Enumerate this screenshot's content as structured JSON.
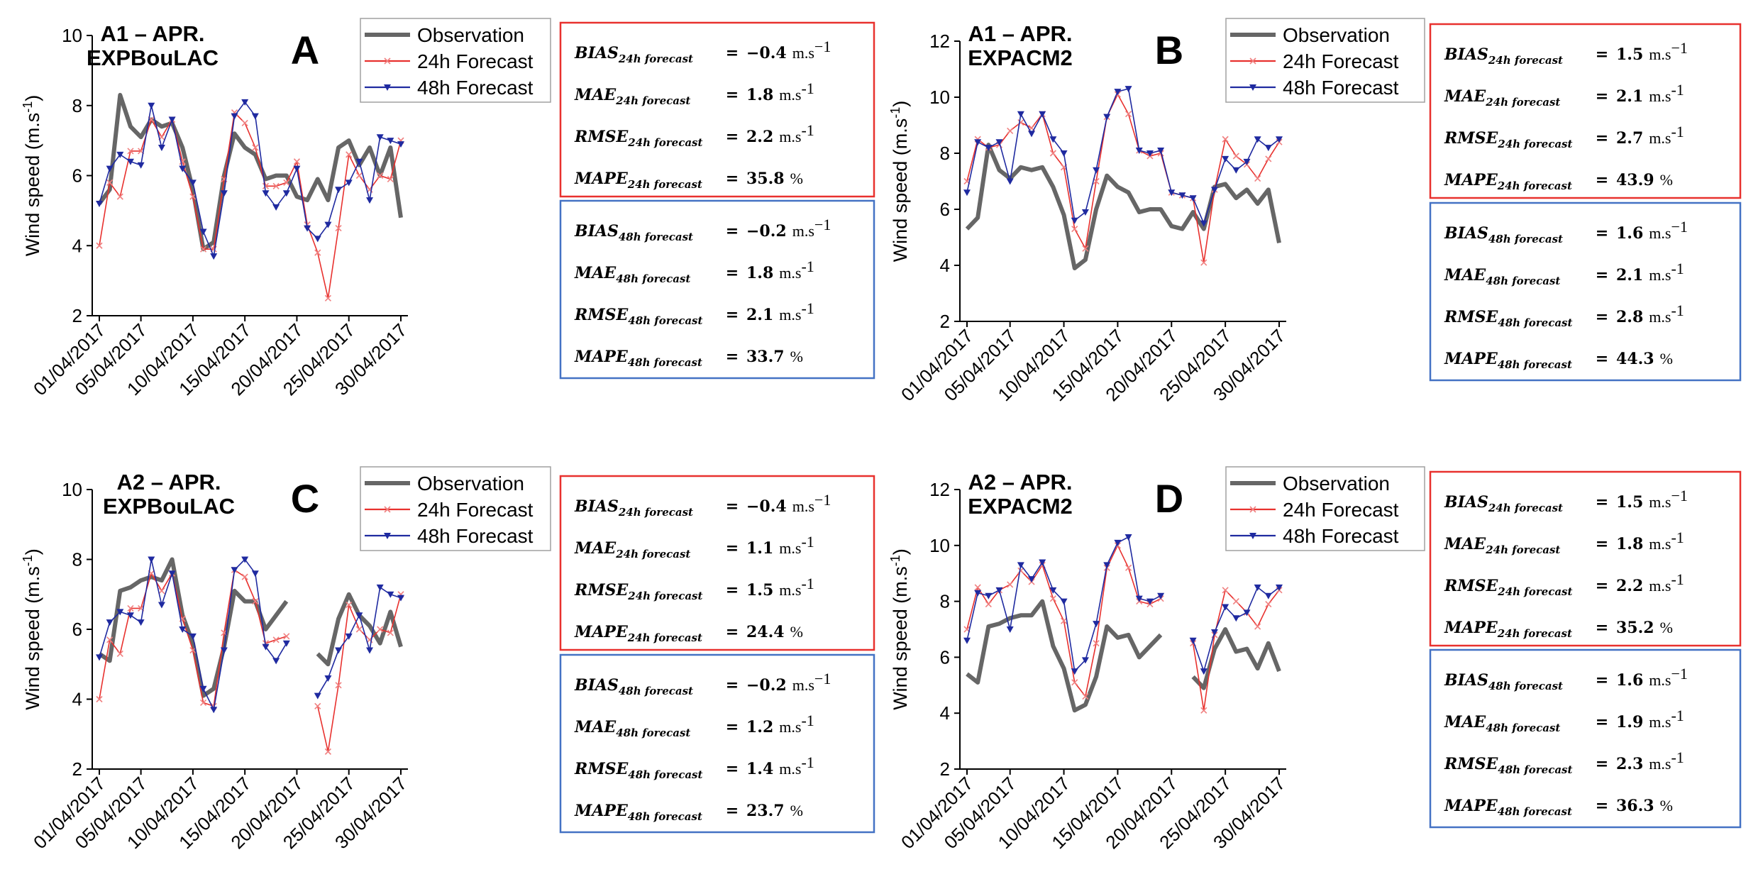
{
  "chart_data": [
    {
      "type": "line",
      "panel": "A",
      "title": "A1 – APR.",
      "subtitle": "EXPBouLAC",
      "ylabel": "Wind speed (m.s-1)",
      "ylabel_main": "Wind speed (m.s",
      "ylabel_sup": "-1",
      "ylabel_end": ")",
      "ylim": [
        2,
        10
      ],
      "yticks": [
        2,
        4,
        6,
        8,
        10
      ],
      "xticks": [
        "01/04/2017",
        "05/04/2017",
        "10/04/2017",
        "15/04/2017",
        "20/04/2017",
        "25/04/2017",
        "30/04/2017"
      ],
      "xtick_days": [
        1,
        5,
        10,
        15,
        20,
        25,
        30
      ],
      "legend": "top-right",
      "series": [
        {
          "name": "Observation",
          "color": "#666666",
          "values": [
            5.2,
            5.6,
            8.3,
            7.4,
            7.1,
            7.6,
            7.4,
            7.5,
            6.8,
            5.6,
            3.9,
            4.1,
            6.0,
            7.2,
            6.8,
            6.6,
            5.9,
            6.0,
            6.0,
            5.4,
            5.3,
            5.9,
            5.3,
            6.8,
            7.0,
            6.3,
            6.8,
            6.0,
            6.8,
            4.8
          ]
        },
        {
          "name": "24h Forecast",
          "color": "#e8312e",
          "values": [
            4.0,
            5.8,
            5.4,
            6.7,
            6.7,
            7.6,
            7.1,
            7.6,
            6.4,
            5.4,
            3.9,
            3.9,
            5.9,
            7.8,
            7.5,
            6.8,
            5.7,
            5.7,
            5.8,
            6.4,
            4.6,
            3.8,
            2.5,
            4.5,
            6.6,
            6.0,
            5.6,
            6.0,
            5.9,
            7.0
          ]
        },
        {
          "name": "48h Forecast",
          "color": "#1f2aa0",
          "values": [
            5.2,
            6.2,
            6.6,
            6.4,
            6.3,
            8.0,
            6.8,
            7.6,
            6.2,
            5.8,
            4.4,
            3.7,
            5.5,
            7.7,
            8.1,
            7.7,
            5.5,
            5.1,
            5.5,
            6.2,
            4.5,
            4.2,
            4.6,
            5.6,
            5.8,
            6.4,
            5.3,
            7.1,
            7.0,
            6.9
          ]
        }
      ],
      "stats": {
        "b24": {
          "name": "BIAS",
          "sub": "24h forecast",
          "value": "−0.4",
          "unit": "m.s",
          "sup": "−1"
        },
        "m24": {
          "name": "MAE",
          "sub": "24h forecast",
          "value": "1.8",
          "unit": "m.s",
          "sup": "-1"
        },
        "r24": {
          "name": "RMSE",
          "sub": "24h forecast",
          "value": "2.2",
          "unit": "m.s",
          "sup": "-1"
        },
        "p24": {
          "name": "MAPE",
          "sub": "24h forecast",
          "value": "35.8",
          "unit": "%",
          "sup": ""
        },
        "b48": {
          "name": "BIAS",
          "sub": "48h forecast",
          "value": "−0.2",
          "unit": "m.s",
          "sup": "−1"
        },
        "m48": {
          "name": "MAE",
          "sub": "48h forecast",
          "value": "1.8",
          "unit": "m.s",
          "sup": "-1"
        },
        "r48": {
          "name": "RMSE",
          "sub": "48h forecast",
          "value": "2.1",
          "unit": "m.s",
          "sup": "-1"
        },
        "p48": {
          "name": "MAPE",
          "sub": "48h forecast",
          "value": "33.7",
          "unit": "%",
          "sup": ""
        }
      }
    },
    {
      "type": "line",
      "panel": "B",
      "title": "A1 – APR.",
      "subtitle": "EXPACM2",
      "ylabel": "Wind speed (m.s-1)",
      "ylabel_main": "Wind speed (m.s",
      "ylabel_sup": "-1",
      "ylabel_end": ")",
      "ylim": [
        2,
        12
      ],
      "yticks": [
        2,
        4,
        6,
        8,
        10,
        12
      ],
      "xticks": [
        "01/04/2017",
        "05/04/2017",
        "10/04/2017",
        "15/04/2017",
        "20/04/2017",
        "25/04/2017",
        "30/04/2017"
      ],
      "xtick_days": [
        1,
        5,
        10,
        15,
        20,
        25,
        30
      ],
      "legend": "top-right",
      "series": [
        {
          "name": "Observation",
          "color": "#666666",
          "values": [
            5.3,
            5.7,
            8.3,
            7.4,
            7.1,
            7.5,
            7.4,
            7.5,
            6.8,
            5.8,
            3.9,
            4.2,
            6.0,
            7.2,
            6.8,
            6.6,
            5.9,
            6.0,
            6.0,
            5.4,
            5.3,
            5.9,
            5.3,
            6.8,
            6.9,
            6.4,
            6.7,
            6.2,
            6.7,
            4.8
          ]
        },
        {
          "name": "24h Forecast",
          "color": "#e8312e",
          "values": [
            7.0,
            8.5,
            8.2,
            8.3,
            8.8,
            9.1,
            8.9,
            9.4,
            8.0,
            7.5,
            5.3,
            4.6,
            7.0,
            9.3,
            10.1,
            9.4,
            8.1,
            7.9,
            8.0,
            6.6,
            6.5,
            6.4,
            4.1,
            6.7,
            8.5,
            7.9,
            7.6,
            7.1,
            7.8,
            8.4
          ]
        },
        {
          "name": "48h Forecast",
          "color": "#1f2aa0",
          "values": [
            6.6,
            8.4,
            8.2,
            8.4,
            7.0,
            9.4,
            8.7,
            9.4,
            8.5,
            8.0,
            5.6,
            5.9,
            7.4,
            9.3,
            10.2,
            10.3,
            8.1,
            8.0,
            8.1,
            6.6,
            6.5,
            6.4,
            5.5,
            6.7,
            7.8,
            7.4,
            7.7,
            8.5,
            8.2,
            8.5
          ]
        }
      ],
      "stats": {
        "b24": {
          "name": "BIAS",
          "sub": "24h forecast",
          "value": "1.5",
          "unit": "m.s",
          "sup": "−1"
        },
        "m24": {
          "name": "MAE",
          "sub": "24h forecast",
          "value": "2.1",
          "unit": "m.s",
          "sup": "-1"
        },
        "r24": {
          "name": "RMSE",
          "sub": "24h forecast",
          "value": "2.7",
          "unit": "m.s",
          "sup": "-1"
        },
        "p24": {
          "name": "MAPE",
          "sub": "24h forecast",
          "value": "43.9",
          "unit": "%",
          "sup": ""
        },
        "b48": {
          "name": "BIAS",
          "sub": "48h forecast",
          "value": "1.6",
          "unit": "m.s",
          "sup": "−1"
        },
        "m48": {
          "name": "MAE",
          "sub": "48h forecast",
          "value": "2.1",
          "unit": "m.s",
          "sup": "-1"
        },
        "r48": {
          "name": "RMSE",
          "sub": "48h forecast",
          "value": "2.8",
          "unit": "m.s",
          "sup": "-1"
        },
        "p48": {
          "name": "MAPE",
          "sub": "48h forecast",
          "value": "44.3",
          "unit": "%",
          "sup": ""
        }
      }
    },
    {
      "type": "line",
      "panel": "C",
      "title": "A2 – APR.",
      "subtitle": "EXPBouLAC",
      "ylabel": "Wind speed (m.s-1)",
      "ylabel_main": "Wind speed (m.s",
      "ylabel_sup": "-1",
      "ylabel_end": ")",
      "ylim": [
        2,
        10
      ],
      "yticks": [
        2,
        4,
        6,
        8,
        10
      ],
      "xticks": [
        "01/04/2017",
        "05/04/2017",
        "10/04/2017",
        "15/04/2017",
        "20/04/2017",
        "25/04/2017",
        "30/04/2017"
      ],
      "xtick_days": [
        1,
        5,
        10,
        15,
        20,
        25,
        30
      ],
      "legend": "top-right",
      "series": [
        {
          "name": "Observation",
          "color": "#666666",
          "values": [
            5.3,
            5.1,
            7.1,
            7.2,
            7.4,
            7.5,
            7.4,
            8.0,
            6.4,
            5.6,
            4.1,
            4.3,
            5.5,
            7.1,
            6.8,
            6.8,
            6.0,
            6.4,
            6.8,
            null,
            null,
            5.3,
            5.0,
            6.3,
            7.0,
            6.4,
            6.1,
            5.6,
            6.5,
            5.5
          ]
        },
        {
          "name": "24h Forecast",
          "color": "#e8312e",
          "values": [
            4.0,
            5.7,
            5.3,
            6.6,
            6.6,
            7.6,
            7.1,
            7.6,
            6.3,
            5.4,
            3.9,
            3.8,
            5.9,
            7.7,
            7.5,
            6.8,
            5.6,
            5.7,
            5.8,
            null,
            null,
            3.8,
            2.5,
            4.4,
            6.7,
            6.0,
            5.7,
            6.0,
            5.9,
            7.0
          ]
        },
        {
          "name": "48h Forecast",
          "color": "#1f2aa0",
          "values": [
            5.2,
            6.2,
            6.5,
            6.4,
            6.2,
            8.0,
            6.7,
            7.6,
            6.0,
            5.8,
            4.3,
            3.7,
            5.4,
            7.7,
            8.0,
            7.6,
            5.5,
            5.1,
            5.6,
            null,
            null,
            4.1,
            4.6,
            5.4,
            5.8,
            6.4,
            5.4,
            7.2,
            7.0,
            6.9
          ]
        }
      ],
      "stats": {
        "b24": {
          "name": "BIAS",
          "sub": "24h forecast",
          "value": "−0.4",
          "unit": "m.s",
          "sup": "−1"
        },
        "m24": {
          "name": "MAE",
          "sub": "24h forecast",
          "value": "1.1",
          "unit": "m.s",
          "sup": "-1"
        },
        "r24": {
          "name": "RMSE",
          "sub": "24h forecast",
          "value": "1.5",
          "unit": "m.s",
          "sup": "-1"
        },
        "p24": {
          "name": "MAPE",
          "sub": "24h forecast",
          "value": "24.4",
          "unit": "%",
          "sup": ""
        },
        "b48": {
          "name": "BIAS",
          "sub": "48h forecast",
          "value": "−0.2",
          "unit": "m.s",
          "sup": "−1"
        },
        "m48": {
          "name": "MAE",
          "sub": "48h forecast",
          "value": "1.2",
          "unit": "m.s",
          "sup": "-1"
        },
        "r48": {
          "name": "RMSE",
          "sub": "48h forecast",
          "value": "1.4",
          "unit": "m.s",
          "sup": "-1"
        },
        "p48": {
          "name": "MAPE",
          "sub": "48h forecast",
          "value": "23.7",
          "unit": "%",
          "sup": ""
        }
      }
    },
    {
      "type": "line",
      "panel": "D",
      "title": "A2 – APR.",
      "subtitle": "EXPACM2",
      "ylabel": "Wind speed (m.s-1)",
      "ylabel_main": "Wind speed (m.s",
      "ylabel_sup": "-1",
      "ylabel_end": ")",
      "ylim": [
        2,
        12
      ],
      "yticks": [
        2,
        4,
        6,
        8,
        10,
        12
      ],
      "xticks": [
        "01/04/2017",
        "05/04/2017",
        "10/04/2017",
        "15/04/2017",
        "20/04/2017",
        "25/04/2017",
        "30/04/2017"
      ],
      "xtick_days": [
        1,
        5,
        10,
        15,
        20,
        25,
        30
      ],
      "legend": "top-right",
      "series": [
        {
          "name": "Observation",
          "color": "#666666",
          "values": [
            5.4,
            5.1,
            7.1,
            7.2,
            7.4,
            7.5,
            7.5,
            8.0,
            6.4,
            5.6,
            4.1,
            4.3,
            5.3,
            7.1,
            6.7,
            6.8,
            6.0,
            6.4,
            6.8,
            null,
            null,
            5.3,
            4.9,
            6.3,
            7.0,
            6.2,
            6.3,
            5.6,
            6.5,
            5.5
          ]
        },
        {
          "name": "24h Forecast",
          "color": "#e8312e",
          "values": [
            7.0,
            8.5,
            7.9,
            8.4,
            8.6,
            9.1,
            8.7,
            9.3,
            8.1,
            7.3,
            5.1,
            4.6,
            6.5,
            9.2,
            10.0,
            9.2,
            8.0,
            7.9,
            8.1,
            null,
            null,
            6.5,
            4.1,
            6.8,
            8.4,
            8.0,
            7.6,
            7.1,
            7.9,
            8.4
          ]
        },
        {
          "name": "48h Forecast",
          "color": "#1f2aa0",
          "values": [
            6.6,
            8.3,
            8.2,
            8.4,
            7.0,
            9.3,
            8.8,
            9.4,
            8.4,
            8.0,
            5.5,
            5.9,
            7.2,
            9.3,
            10.1,
            10.3,
            8.1,
            8.0,
            8.2,
            null,
            null,
            6.6,
            5.5,
            6.9,
            7.8,
            7.4,
            7.6,
            8.5,
            8.2,
            8.5
          ]
        }
      ],
      "stats": {
        "b24": {
          "name": "BIAS",
          "sub": "24h forecast",
          "value": "1.5",
          "unit": "m.s",
          "sup": "−1"
        },
        "m24": {
          "name": "MAE",
          "sub": "24h forecast",
          "value": "1.8",
          "unit": "m.s",
          "sup": "-1"
        },
        "r24": {
          "name": "RMSE",
          "sub": "24h forecast",
          "value": "2.2",
          "unit": "m.s",
          "sup": "-1"
        },
        "p24": {
          "name": "MAPE",
          "sub": "24h forecast",
          "value": "35.2",
          "unit": "%",
          "sup": ""
        },
        "b48": {
          "name": "BIAS",
          "sub": "48h forecast",
          "value": "1.6",
          "unit": "m.s",
          "sup": "−1"
        },
        "m48": {
          "name": "MAE",
          "sub": "48h forecast",
          "value": "1.9",
          "unit": "m.s",
          "sup": "-1"
        },
        "r48": {
          "name": "RMSE",
          "sub": "48h forecast",
          "value": "2.3",
          "unit": "m.s",
          "sup": "-1"
        },
        "p48": {
          "name": "MAPE",
          "sub": "48h forecast",
          "value": "36.3",
          "unit": "%",
          "sup": ""
        }
      }
    }
  ],
  "colors": {
    "box24": "#e8312e",
    "box48": "#4472c4"
  },
  "equals_sign": "="
}
